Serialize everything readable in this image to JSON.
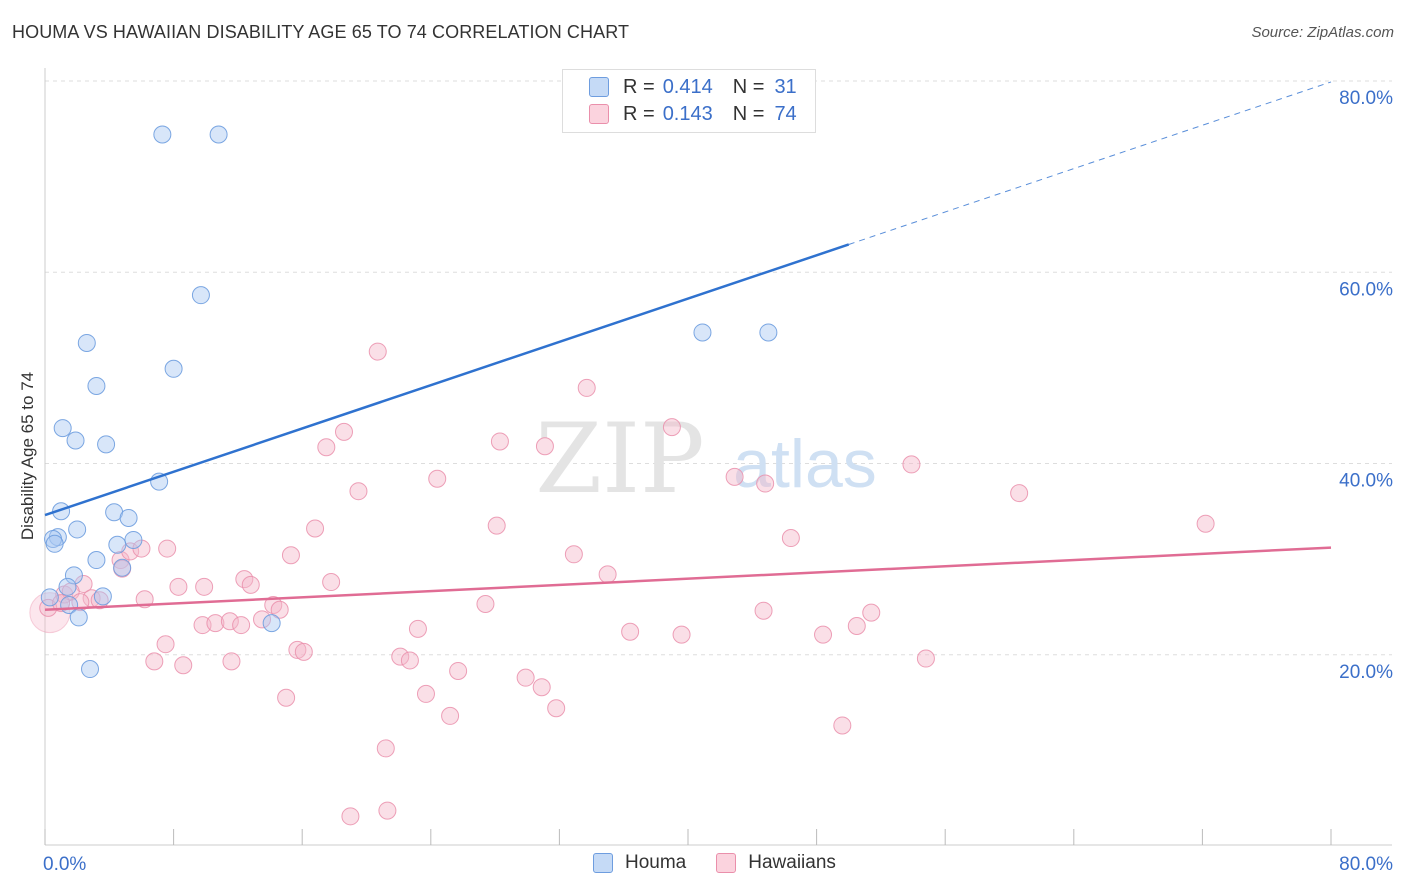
{
  "title": "HOUMA VS HAWAIIAN DISABILITY AGE 65 TO 74 CORRELATION CHART",
  "source": "Source: ZipAtlas.com",
  "watermark": {
    "zip": "ZIP",
    "atlas": "atlas"
  },
  "legend": {
    "rows": [
      {
        "r_label": "R =",
        "r_value": "0.414",
        "n_label": "N =",
        "n_value": "31",
        "color": "#a9c8f2"
      },
      {
        "r_label": "R =",
        "r_value": "0.143",
        "n_label": "N =",
        "n_value": "74",
        "color": "#f5b8ca"
      }
    ]
  },
  "bottom_legend": {
    "houma": "Houma",
    "hawaiians": "Hawaiians"
  },
  "chart_data": {
    "type": "scatter",
    "title": "HOUMA VS HAWAIIAN DISABILITY AGE 65 TO 74 CORRELATION CHART",
    "xlabel": "",
    "ylabel": "Disability Age 65 to 74",
    "xlim": [
      0,
      80
    ],
    "ylim": [
      0,
      80
    ],
    "x_tick_labels": [
      "0.0%",
      "80.0%"
    ],
    "y_tick_values": [
      20,
      40,
      60,
      80
    ],
    "y_tick_labels": [
      "20.0%",
      "40.0%",
      "60.0%",
      "80.0%"
    ],
    "grid": true,
    "series": [
      {
        "name": "Houma",
        "color": "#a9c8f2",
        "stroke": "#6e9ddf",
        "line_color": "#2f72cf",
        "trend": {
          "x0": 0,
          "y0": 34.5,
          "x1": 50,
          "y1": 62.8,
          "dash_to_x": 80,
          "dash_to_y": 79.8
        },
        "points": [
          [
            7.3,
            74.3
          ],
          [
            10.8,
            74.3
          ],
          [
            9.7,
            57.5
          ],
          [
            2.6,
            52.5
          ],
          [
            8.0,
            49.8
          ],
          [
            3.2,
            48.0
          ],
          [
            1.1,
            43.6
          ],
          [
            1.9,
            42.3
          ],
          [
            3.8,
            41.9
          ],
          [
            7.1,
            38.0
          ],
          [
            1.0,
            34.9
          ],
          [
            4.3,
            34.8
          ],
          [
            5.2,
            34.2
          ],
          [
            2.0,
            33.0
          ],
          [
            0.8,
            32.2
          ],
          [
            0.5,
            32.0
          ],
          [
            0.6,
            31.5
          ],
          [
            5.5,
            31.9
          ],
          [
            4.5,
            31.4
          ],
          [
            3.2,
            29.8
          ],
          [
            4.8,
            29.0
          ],
          [
            1.8,
            28.2
          ],
          [
            1.4,
            27.0
          ],
          [
            0.3,
            25.9
          ],
          [
            3.6,
            26.0
          ],
          [
            1.5,
            25.1
          ],
          [
            2.1,
            23.8
          ],
          [
            14.1,
            23.2
          ],
          [
            2.8,
            18.4
          ],
          [
            40.9,
            53.6
          ],
          [
            45.0,
            53.6
          ]
        ]
      },
      {
        "name": "Hawaiians",
        "color": "#f5b8ca",
        "stroke": "#ea8fab",
        "line_color": "#e06c94",
        "trend": {
          "x0": 0,
          "y0": 24.6,
          "x1": 80,
          "y1": 31.1
        },
        "points": [
          [
            0.2,
            24.8
          ],
          [
            1.2,
            26.2
          ],
          [
            2.4,
            27.3
          ],
          [
            1.6,
            26.5
          ],
          [
            2.9,
            25.8
          ],
          [
            3.4,
            25.6
          ],
          [
            4.7,
            29.8
          ],
          [
            5.3,
            30.7
          ],
          [
            6.0,
            31.0
          ],
          [
            6.2,
            25.7
          ],
          [
            7.6,
            31.0
          ],
          [
            8.3,
            27.0
          ],
          [
            7.5,
            21.0
          ],
          [
            6.8,
            19.2
          ],
          [
            8.6,
            18.8
          ],
          [
            9.8,
            23.0
          ],
          [
            9.9,
            27.0
          ],
          [
            10.6,
            23.2
          ],
          [
            11.5,
            23.4
          ],
          [
            12.2,
            23.0
          ],
          [
            11.6,
            19.2
          ],
          [
            12.4,
            27.8
          ],
          [
            12.8,
            27.2
          ],
          [
            13.5,
            23.6
          ],
          [
            14.2,
            25.1
          ],
          [
            14.6,
            24.6
          ],
          [
            15.3,
            30.3
          ],
          [
            15.0,
            15.4
          ],
          [
            15.7,
            20.4
          ],
          [
            16.1,
            20.2
          ],
          [
            16.8,
            33.1
          ],
          [
            17.5,
            41.6
          ],
          [
            17.8,
            27.5
          ],
          [
            18.6,
            43.2
          ],
          [
            19.5,
            37.0
          ],
          [
            20.7,
            51.6
          ],
          [
            19.0,
            3.0
          ],
          [
            21.3,
            3.6
          ],
          [
            21.2,
            10.1
          ],
          [
            22.1,
            19.7
          ],
          [
            22.7,
            19.3
          ],
          [
            23.2,
            22.6
          ],
          [
            23.7,
            15.8
          ],
          [
            24.4,
            38.3
          ],
          [
            25.2,
            13.5
          ],
          [
            25.7,
            18.2
          ],
          [
            27.4,
            25.2
          ],
          [
            28.1,
            33.4
          ],
          [
            28.3,
            42.2
          ],
          [
            29.9,
            17.5
          ],
          [
            30.9,
            16.5
          ],
          [
            31.1,
            41.7
          ],
          [
            31.8,
            14.3
          ],
          [
            32.9,
            30.4
          ],
          [
            33.7,
            47.8
          ],
          [
            35.0,
            28.3
          ],
          [
            36.4,
            22.3
          ],
          [
            39.0,
            43.7
          ],
          [
            39.6,
            22.0
          ],
          [
            42.9,
            38.5
          ],
          [
            44.7,
            24.5
          ],
          [
            44.8,
            37.8
          ],
          [
            46.4,
            32.1
          ],
          [
            48.4,
            22.0
          ],
          [
            49.6,
            12.5
          ],
          [
            50.5,
            22.9
          ],
          [
            51.4,
            24.3
          ],
          [
            53.9,
            39.8
          ],
          [
            54.8,
            19.5
          ],
          [
            60.6,
            36.8
          ],
          [
            72.2,
            33.6
          ],
          [
            4.8,
            28.9
          ],
          [
            1.0,
            25.3
          ],
          [
            2.2,
            25.4
          ]
        ]
      }
    ]
  }
}
